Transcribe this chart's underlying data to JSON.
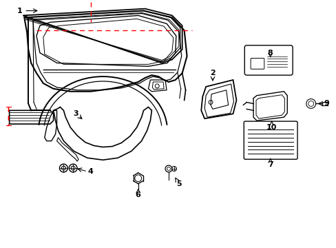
{
  "bg": "#ffffff",
  "lc": "#000000",
  "rc": "#ff0000",
  "figsize": [
    4.89,
    3.6
  ],
  "dpi": 100
}
